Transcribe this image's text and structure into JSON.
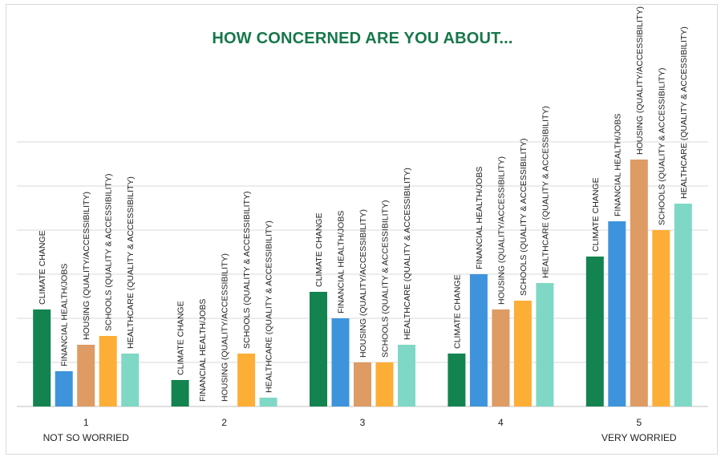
{
  "chart_data": {
    "type": "bar",
    "title": "HOW CONCERNED ARE YOU ABOUT...",
    "categories": [
      "1",
      "2",
      "3",
      "4",
      "5"
    ],
    "category_sublabels": [
      "NOT SO WORRIED",
      "",
      "",
      "",
      "VERY WORRIED"
    ],
    "series": [
      {
        "name": "CLIMATE CHANGE",
        "color": "#13834f",
        "values": [
          11,
          3,
          13,
          6,
          17
        ]
      },
      {
        "name": "FINANCIAL HEALTH/JOBS",
        "color": "#3e94dc",
        "values": [
          4,
          0,
          10,
          15,
          21
        ]
      },
      {
        "name": "HOUSING (QUALITY/ACCESSIBILITY)",
        "color": "#de9b64",
        "values": [
          7,
          0,
          5,
          11,
          28
        ]
      },
      {
        "name": "SCHOOLS (QUALITY & ACCESSIBILITY)",
        "color": "#fdae37",
        "values": [
          8,
          6,
          5,
          12,
          20
        ]
      },
      {
        "name": "HEALTHCARE (QUALITY & ACCESSIBILITY)",
        "color": "#7fd8c5",
        "values": [
          6,
          1,
          7,
          14,
          23
        ]
      }
    ],
    "ylim": [
      0,
      30
    ],
    "gridline_step": 5,
    "xlabel": "",
    "ylabel": "",
    "legend": "none (series names as vertical labels above bars)"
  }
}
